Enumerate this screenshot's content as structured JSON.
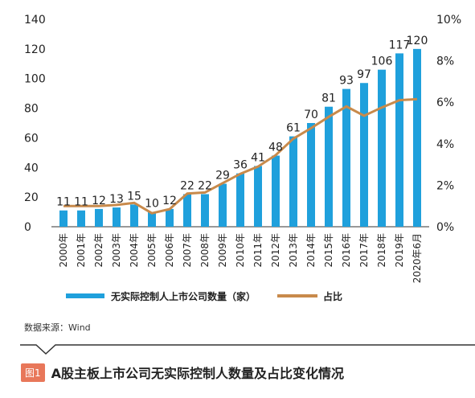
{
  "chart_data": {
    "type": "bar",
    "categories": [
      "2000年",
      "2001年",
      "2002年",
      "2003年",
      "2004年",
      "2005年",
      "2006年",
      "2007年",
      "2008年",
      "2009年",
      "2010年",
      "2011年",
      "2012年",
      "2013年",
      "2014年",
      "2015年",
      "2016年",
      "2017年",
      "2018年",
      "2019年",
      "2020年6月"
    ],
    "series": [
      {
        "name": "无实际控制人上市公司数量（家）",
        "axis": "left",
        "type": "bar",
        "values": [
          11,
          11,
          12,
          13,
          15,
          10,
          12,
          22,
          22,
          29,
          36,
          41,
          48,
          61,
          70,
          81,
          93,
          97,
          106,
          117,
          120
        ]
      },
      {
        "name": "占比",
        "axis": "right",
        "type": "line",
        "values": [
          1.0,
          1.0,
          1.0,
          1.05,
          1.15,
          0.65,
          0.85,
          1.6,
          1.65,
          2.1,
          2.55,
          2.9,
          3.45,
          4.25,
          4.75,
          5.3,
          5.8,
          5.35,
          5.75,
          6.1,
          6.15
        ]
      }
    ],
    "y_left": {
      "ylim": [
        0,
        140
      ],
      "ticks": [
        "0",
        "20",
        "40",
        "60",
        "80",
        "100",
        "120",
        "140"
      ]
    },
    "y_right": {
      "ylim": [
        0,
        10
      ],
      "ticks": [
        "0%",
        "2%",
        "4%",
        "6%",
        "8%",
        "10%"
      ]
    },
    "colors": {
      "bar": "#1fa0dc",
      "line": "#c88a4b"
    },
    "legend_placement": "bottom",
    "grid": false
  },
  "source_text": "数据来源：Wind",
  "figure_badge": "图1",
  "figure_title": "A股主板上市公司无实际控制人数量及占比变化情况"
}
